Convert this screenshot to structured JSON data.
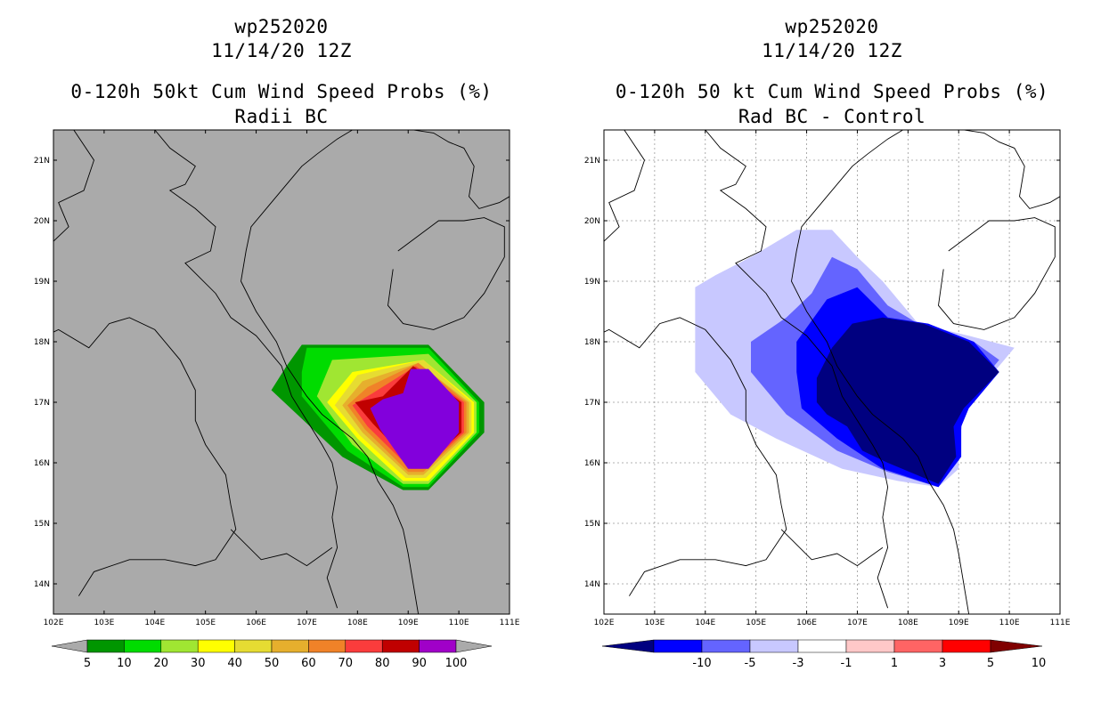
{
  "chart_data": [
    {
      "type": "heatmap",
      "storm_id": "wp252020",
      "datetime": "11/14/20 12Z",
      "title": "0-120h 50kt Cum Wind Speed Probs (%)",
      "subtitle": "Radii BC",
      "x_ticks": [
        "102E",
        "103E",
        "104E",
        "105E",
        "106E",
        "107E",
        "108E",
        "109E",
        "110E",
        "111E"
      ],
      "y_ticks": [
        "14N",
        "15N",
        "16N",
        "17N",
        "18N",
        "19N",
        "20N",
        "21N"
      ],
      "xlim": [
        102,
        111
      ],
      "ylim": [
        13.5,
        21.5
      ],
      "colorbar": {
        "labels": [
          "5",
          "10",
          "20",
          "30",
          "40",
          "50",
          "60",
          "70",
          "80",
          "90",
          "100"
        ],
        "colors": [
          "#009600",
          "#00dc00",
          "#a0e632",
          "#ffff00",
          "#e6dc32",
          "#e6af2d",
          "#f08228",
          "#fa3c3c",
          "#c00000",
          "#a000c8",
          "#8200dc"
        ]
      },
      "background_color": "#aaaaaa",
      "probability_contours": [
        {
          "level": 5,
          "color": "#009600",
          "lonlat": [
            [
              106.9,
              17.95
            ],
            [
              109.4,
              17.95
            ],
            [
              110.5,
              17.0
            ],
            [
              110.5,
              16.5
            ],
            [
              109.4,
              15.55
            ],
            [
              108.9,
              15.55
            ],
            [
              107.7,
              16.1
            ],
            [
              106.3,
              17.2
            ],
            [
              106.6,
              17.6
            ]
          ]
        },
        {
          "level": 10,
          "color": "#00dc00",
          "lonlat": [
            [
              107.0,
              17.9
            ],
            [
              109.4,
              17.9
            ],
            [
              110.4,
              17.0
            ],
            [
              110.4,
              16.5
            ],
            [
              109.4,
              15.6
            ],
            [
              108.9,
              15.6
            ],
            [
              107.8,
              16.2
            ],
            [
              106.9,
              17.1
            ],
            [
              106.9,
              17.5
            ]
          ]
        },
        {
          "level": 20,
          "color": "#a0e632",
          "lonlat": [
            [
              107.5,
              17.7
            ],
            [
              109.4,
              17.8
            ],
            [
              110.35,
              17.0
            ],
            [
              110.35,
              16.5
            ],
            [
              109.4,
              15.65
            ],
            [
              108.9,
              15.65
            ],
            [
              107.9,
              16.3
            ],
            [
              107.2,
              17.1
            ]
          ]
        },
        {
          "level": 30,
          "color": "#ffff00",
          "lonlat": [
            [
              107.9,
              17.5
            ],
            [
              109.3,
              17.7
            ],
            [
              110.3,
              17.0
            ],
            [
              110.3,
              16.5
            ],
            [
              109.4,
              15.7
            ],
            [
              108.9,
              15.7
            ],
            [
              108.0,
              16.4
            ],
            [
              107.4,
              17.0
            ]
          ]
        },
        {
          "level": 40,
          "color": "#e6dc32",
          "lonlat": [
            [
              108.0,
              17.45
            ],
            [
              109.3,
              17.7
            ],
            [
              110.25,
              17.0
            ],
            [
              110.25,
              16.5
            ],
            [
              109.35,
              15.75
            ],
            [
              108.95,
              15.75
            ],
            [
              108.05,
              16.45
            ],
            [
              107.55,
              16.95
            ]
          ]
        },
        {
          "level": 50,
          "color": "#e6af2d",
          "lonlat": [
            [
              108.1,
              17.35
            ],
            [
              109.2,
              17.65
            ],
            [
              110.2,
              17.0
            ],
            [
              110.2,
              16.5
            ],
            [
              109.3,
              15.8
            ],
            [
              109.0,
              15.8
            ],
            [
              108.1,
              16.5
            ],
            [
              107.7,
              16.95
            ]
          ]
        },
        {
          "level": 60,
          "color": "#f08228",
          "lonlat": [
            [
              108.2,
              17.25
            ],
            [
              109.2,
              17.65
            ],
            [
              110.15,
              17.0
            ],
            [
              110.15,
              16.5
            ],
            [
              109.3,
              15.85
            ],
            [
              109.0,
              15.85
            ],
            [
              108.15,
              16.55
            ],
            [
              107.8,
              16.95
            ]
          ]
        },
        {
          "level": 70,
          "color": "#fa3c3c",
          "lonlat": [
            [
              108.3,
              17.15
            ],
            [
              109.15,
              17.6
            ],
            [
              110.1,
              17.0
            ],
            [
              110.1,
              16.5
            ],
            [
              109.3,
              15.9
            ],
            [
              109.05,
              15.9
            ],
            [
              108.2,
              16.6
            ],
            [
              107.9,
              16.95
            ]
          ]
        },
        {
          "level": 80,
          "color": "#c00000",
          "lonlat": [
            [
              108.5,
              17.1
            ],
            [
              109.1,
              17.6
            ],
            [
              110.05,
              17.0
            ],
            [
              110.05,
              16.5
            ],
            [
              109.3,
              15.95
            ],
            [
              109.1,
              15.95
            ],
            [
              108.3,
              16.65
            ],
            [
              107.95,
              17.0
            ]
          ]
        },
        {
          "level": 90,
          "color": "#8200dc",
          "lonlat": [
            [
              108.5,
              17.05
            ],
            [
              108.9,
              17.15
            ],
            [
              109.05,
              17.55
            ],
            [
              109.4,
              17.55
            ],
            [
              110.0,
              17.0
            ],
            [
              110.0,
              16.5
            ],
            [
              109.4,
              15.9
            ],
            [
              109.0,
              15.9
            ],
            [
              108.45,
              16.55
            ],
            [
              108.25,
              16.9
            ]
          ]
        }
      ]
    },
    {
      "type": "heatmap",
      "storm_id": "wp252020",
      "datetime": "11/14/20 12Z",
      "title": "0-120h 50 kt Cum Wind Speed Probs (%)",
      "subtitle": "Rad BC - Control",
      "x_ticks": [
        "102E",
        "103E",
        "104E",
        "105E",
        "106E",
        "107E",
        "108E",
        "109E",
        "110E",
        "111E"
      ],
      "y_ticks": [
        "14N",
        "15N",
        "16N",
        "17N",
        "18N",
        "19N",
        "20N",
        "21N"
      ],
      "xlim": [
        102,
        111
      ],
      "ylim": [
        13.5,
        21.5
      ],
      "colorbar": {
        "labels": [
          "-10",
          "-5",
          "-3",
          "-1",
          "1",
          "3",
          "5",
          "10"
        ],
        "colors": [
          "#000080",
          "#0000ff",
          "#6464ff",
          "#c8c8ff",
          "#ffffff",
          "#ffc8c8",
          "#ff6464",
          "#ff0000",
          "#800000"
        ]
      },
      "background_color": "#ffffff",
      "difference_contours": [
        {
          "level": "-1",
          "color": "#c8c8ff",
          "lonlat": [
            [
              104.9,
              19.4
            ],
            [
              105.8,
              19.85
            ],
            [
              106.5,
              19.85
            ],
            [
              107.0,
              19.4
            ],
            [
              107.5,
              19.0
            ],
            [
              108.2,
              18.3
            ],
            [
              109.2,
              18.1
            ],
            [
              110.1,
              17.9
            ],
            [
              109.2,
              17.0
            ],
            [
              109.0,
              16.6
            ],
            [
              109.0,
              15.9
            ],
            [
              108.6,
              15.6
            ],
            [
              107.8,
              15.7
            ],
            [
              106.7,
              15.9
            ],
            [
              105.4,
              16.4
            ],
            [
              104.5,
              16.8
            ],
            [
              103.8,
              17.5
            ],
            [
              103.8,
              18.9
            ],
            [
              104.2,
              19.1
            ]
          ]
        },
        {
          "level": "-3",
          "color": "#6464ff",
          "lonlat": [
            [
              105.6,
              18.4
            ],
            [
              106.1,
              18.8
            ],
            [
              106.5,
              19.4
            ],
            [
              107.0,
              19.2
            ],
            [
              107.6,
              18.6
            ],
            [
              108.2,
              18.3
            ],
            [
              109.3,
              18.0
            ],
            [
              109.8,
              17.7
            ],
            [
              109.1,
              17.0
            ],
            [
              109.0,
              16.1
            ],
            [
              108.6,
              15.6
            ],
            [
              107.6,
              15.85
            ],
            [
              106.6,
              16.2
            ],
            [
              105.6,
              16.8
            ],
            [
              104.9,
              17.5
            ],
            [
              104.9,
              18.0
            ]
          ]
        },
        {
          "level": "-5",
          "color": "#0000ff",
          "lonlat": [
            [
              105.8,
              18.0
            ],
            [
              106.4,
              18.7
            ],
            [
              107.0,
              18.9
            ],
            [
              107.6,
              18.4
            ],
            [
              108.4,
              18.3
            ],
            [
              109.3,
              18.0
            ],
            [
              109.8,
              17.5
            ],
            [
              109.2,
              16.9
            ],
            [
              109.05,
              16.6
            ],
            [
              109.05,
              16.1
            ],
            [
              108.6,
              15.6
            ],
            [
              107.5,
              15.9
            ],
            [
              106.6,
              16.4
            ],
            [
              105.9,
              16.9
            ],
            [
              105.8,
              17.5
            ]
          ]
        },
        {
          "level": "-10",
          "color": "#000080",
          "lonlat": [
            [
              106.2,
              17.4
            ],
            [
              106.5,
              17.9
            ],
            [
              106.9,
              18.3
            ],
            [
              107.5,
              18.4
            ],
            [
              108.3,
              18.3
            ],
            [
              109.2,
              18.0
            ],
            [
              109.8,
              17.5
            ],
            [
              109.1,
              16.9
            ],
            [
              108.9,
              16.6
            ],
            [
              108.95,
              16.1
            ],
            [
              108.6,
              15.65
            ],
            [
              107.6,
              16.0
            ],
            [
              107.1,
              16.2
            ],
            [
              106.8,
              16.6
            ],
            [
              106.4,
              16.8
            ],
            [
              106.2,
              17.0
            ]
          ]
        }
      ]
    }
  ]
}
